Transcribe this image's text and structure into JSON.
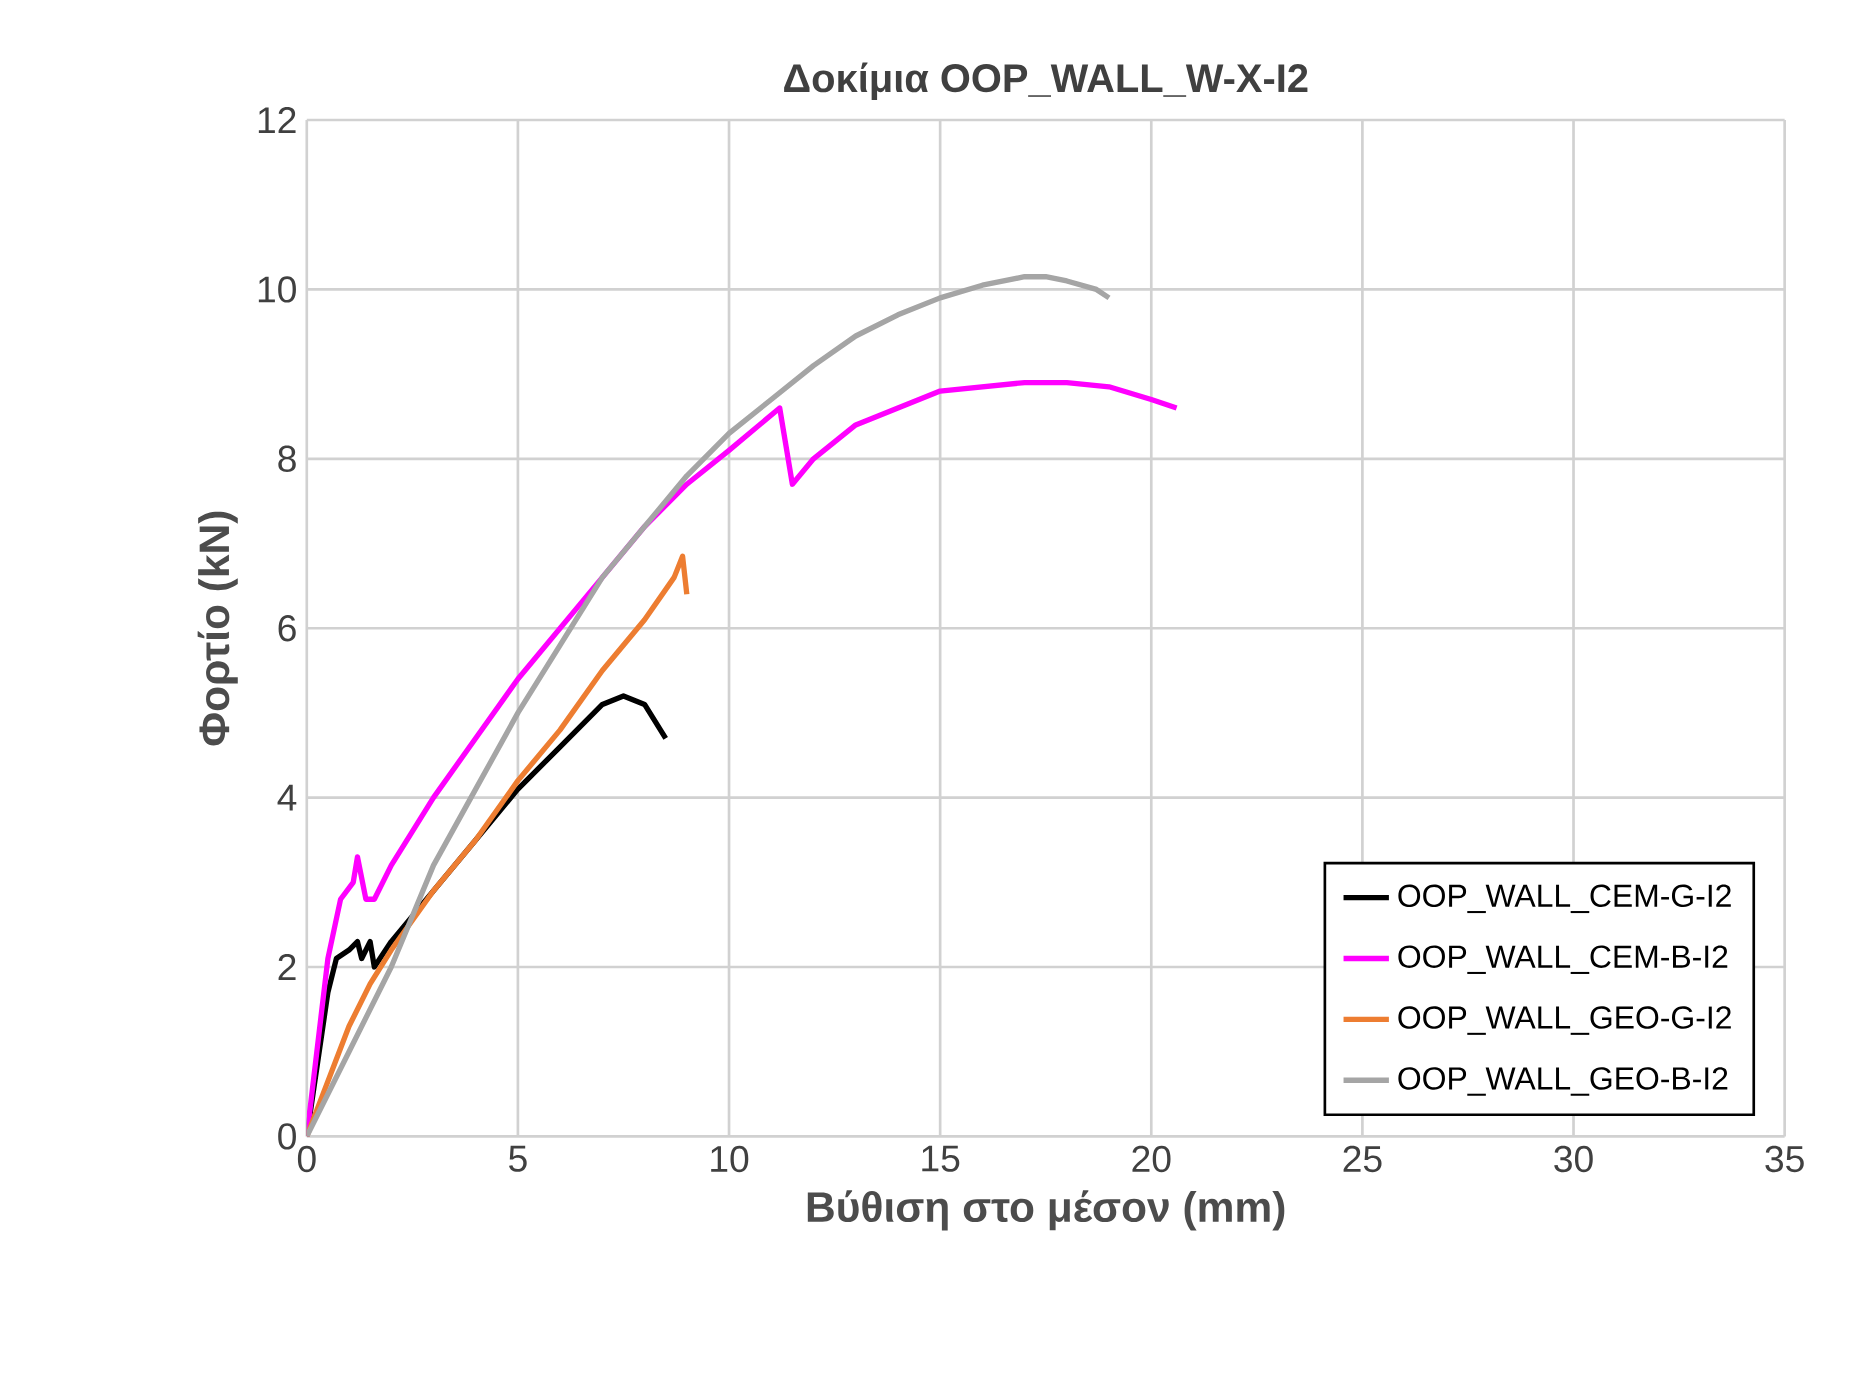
{
  "chart_data": {
    "type": "line",
    "title": "Δοκίμια OOP_WALL_W-X-I2",
    "xlabel": "Βύθιση στο μέσον (mm)",
    "ylabel": "Φορτίο (kN)",
    "xlim": [
      0,
      35
    ],
    "xticks": [
      0,
      5,
      10,
      15,
      20,
      25,
      30,
      35
    ],
    "ylim": [
      0,
      12
    ],
    "yticks": [
      0,
      2,
      4,
      6,
      8,
      10,
      12
    ],
    "grid": true,
    "legend": "bottom right",
    "marker": "none",
    "line_style": "solid",
    "series": [
      {
        "name": "OOP_WALL_CEM-G-I2",
        "color": "#000000",
        "x": [
          0,
          0.5,
          0.7,
          1.0,
          1.2,
          1.3,
          1.5,
          1.6,
          2,
          3,
          4,
          5,
          6,
          7,
          7.5,
          8,
          8.5
        ],
        "values": [
          0,
          1.7,
          2.1,
          2.2,
          2.3,
          2.1,
          2.3,
          2.0,
          2.3,
          2.9,
          3.5,
          4.1,
          4.6,
          5.1,
          5.2,
          5.1,
          4.7
        ]
      },
      {
        "name": "OOP_WALL_CEM-B-I2",
        "color": "#ff00ff",
        "x": [
          0,
          0.5,
          0.8,
          1.1,
          1.2,
          1.4,
          1.6,
          2,
          3,
          4,
          5,
          6,
          7,
          8,
          9,
          10,
          11.2,
          11.5,
          12,
          13,
          14,
          15,
          16,
          17,
          18,
          19,
          20,
          20.6
        ],
        "values": [
          0,
          2.1,
          2.8,
          3.0,
          3.3,
          2.8,
          2.8,
          3.2,
          4.0,
          4.7,
          5.4,
          6.0,
          6.6,
          7.2,
          7.7,
          8.1,
          8.6,
          7.7,
          8.0,
          8.4,
          8.6,
          8.8,
          8.85,
          8.9,
          8.9,
          8.85,
          8.7,
          8.6
        ]
      },
      {
        "name": "OOP_WALL_GEO-G-I2",
        "color": "#ed7d31",
        "x": [
          0,
          1,
          1.5,
          2,
          3,
          4,
          5,
          6,
          7,
          8,
          8.7,
          8.9,
          9
        ],
        "values": [
          0,
          1.3,
          1.8,
          2.2,
          2.9,
          3.5,
          4.2,
          4.8,
          5.5,
          6.1,
          6.6,
          6.85,
          6.4
        ]
      },
      {
        "name": "OOP_WALL_GEO-B-I2",
        "color": "#a5a5a5",
        "x": [
          0,
          1,
          2,
          3,
          4,
          5,
          6,
          7,
          8,
          9,
          10,
          11,
          12,
          13,
          14,
          15,
          16,
          17,
          17.5,
          18,
          18.7,
          19
        ],
        "values": [
          0,
          1.0,
          2.0,
          3.2,
          4.1,
          5.0,
          5.8,
          6.6,
          7.2,
          7.8,
          8.3,
          8.7,
          9.1,
          9.45,
          9.7,
          9.9,
          10.05,
          10.15,
          10.15,
          10.1,
          10.0,
          9.9
        ]
      }
    ]
  }
}
